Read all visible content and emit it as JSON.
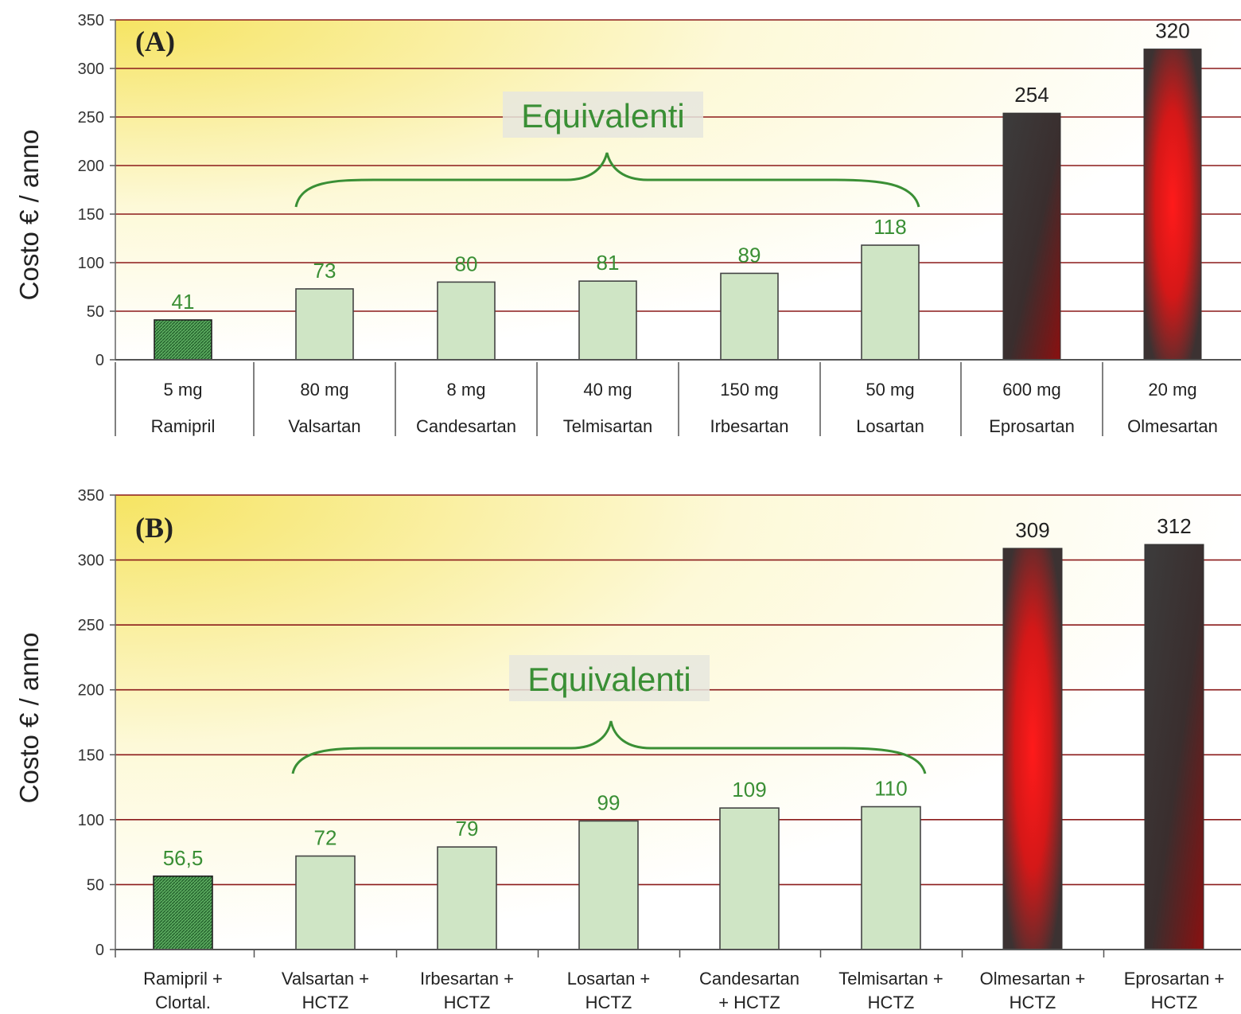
{
  "y_axis_title": "Costo € / anno",
  "equivalent_label": "Equivalenti",
  "colors": {
    "generic_bar": "#3f9a4a",
    "equivalent_bar": "#cfe5c5",
    "premium_bar_edge": "#3a3a3a",
    "premium_bar_center": "#ff2020",
    "green_text": "#3a8f35",
    "grid": "#8b1a1a",
    "background_highlight": "#f7e871"
  },
  "chart_data": [
    {
      "type": "bar",
      "panel_label": "(A)",
      "ylabel": "Costo € / anno",
      "ylim": [
        0,
        350
      ],
      "yticks": [
        0,
        50,
        100,
        150,
        200,
        250,
        300,
        350
      ],
      "grid": true,
      "doses": [
        "5 mg",
        "80 mg",
        "8 mg",
        "40 mg",
        "150 mg",
        "50 mg",
        "600 mg",
        "20 mg"
      ],
      "categories": [
        "Ramipril",
        "Valsartan",
        "Candesartan",
        "Telmisartan",
        "Irbesartan",
        "Losartan",
        "Eprosartan",
        "Olmesartan"
      ],
      "values": [
        41,
        73,
        80,
        81,
        89,
        118,
        254,
        320
      ],
      "value_labels": [
        "41",
        "73",
        "80",
        "81",
        "89",
        "118",
        "254",
        "320"
      ],
      "bar_styles": [
        "generic",
        "equivalent",
        "equivalent",
        "equivalent",
        "equivalent",
        "equivalent",
        "premium-dark",
        "premium-red"
      ],
      "annotation": "Equivalenti"
    },
    {
      "type": "bar",
      "panel_label": "(B)",
      "ylabel": "Costo € / anno",
      "ylim": [
        0,
        350
      ],
      "yticks": [
        0,
        50,
        100,
        150,
        200,
        250,
        300,
        350
      ],
      "grid": true,
      "categories": [
        [
          "Ramipril +",
          "Clortal."
        ],
        [
          "Valsartan +",
          "HCTZ"
        ],
        [
          "Irbesartan +",
          "HCTZ"
        ],
        [
          "Losartan +",
          "HCTZ"
        ],
        [
          "Candesartan",
          "+ HCTZ"
        ],
        [
          "Telmisartan +",
          "HCTZ"
        ],
        [
          "Olmesartan +",
          "HCTZ"
        ],
        [
          "Eprosartan +",
          "HCTZ"
        ]
      ],
      "values": [
        56.5,
        72,
        79,
        99,
        109,
        110,
        309,
        312
      ],
      "value_labels": [
        "56,5",
        "72",
        "79",
        "99",
        "109",
        "110",
        "309",
        "312"
      ],
      "bar_styles": [
        "generic",
        "equivalent",
        "equivalent",
        "equivalent",
        "equivalent",
        "equivalent",
        "premium-red",
        "premium-dark"
      ],
      "annotation": "Equivalenti"
    }
  ]
}
